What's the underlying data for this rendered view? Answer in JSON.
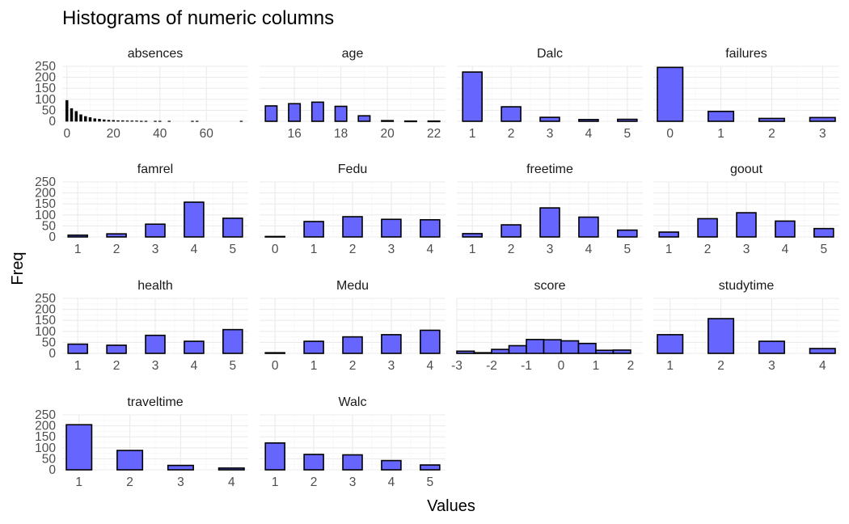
{
  "chart_title": "Histograms of numeric columns",
  "chart_data": {
    "type": "bar",
    "title": "Histograms of numeric columns",
    "xlabel": "Values",
    "ylabel": "Freq",
    "ylim": [
      0,
      250
    ],
    "y_ticks": [
      0,
      50,
      100,
      150,
      200,
      250
    ],
    "grid": true,
    "legend": "none",
    "bar_fill": "#6666ff",
    "bar_outline": "#000000",
    "panels": [
      {
        "name": "absences",
        "fill": "#000000",
        "xlim": [
          -2,
          78
        ],
        "x_ticks": [
          0,
          20,
          40,
          60
        ],
        "x_tick_labels": [
          "0",
          "20",
          "40",
          "60"
        ],
        "bins": [
          {
            "x": 0,
            "count": 95
          },
          {
            "x": 2,
            "count": 58
          },
          {
            "x": 4,
            "count": 45
          },
          {
            "x": 6,
            "count": 30
          },
          {
            "x": 8,
            "count": 22
          },
          {
            "x": 10,
            "count": 17
          },
          {
            "x": 12,
            "count": 12
          },
          {
            "x": 14,
            "count": 10
          },
          {
            "x": 16,
            "count": 7
          },
          {
            "x": 18,
            "count": 5
          },
          {
            "x": 20,
            "count": 4
          },
          {
            "x": 22,
            "count": 3
          },
          {
            "x": 24,
            "count": 3
          },
          {
            "x": 26,
            "count": 2
          },
          {
            "x": 28,
            "count": 2
          },
          {
            "x": 30,
            "count": 2
          },
          {
            "x": 32,
            "count": 1
          },
          {
            "x": 34,
            "count": 1
          },
          {
            "x": 38,
            "count": 1
          },
          {
            "x": 40,
            "count": 1
          },
          {
            "x": 44,
            "count": 1
          },
          {
            "x": 54,
            "count": 1
          },
          {
            "x": 56,
            "count": 1
          },
          {
            "x": 75,
            "count": 1
          }
        ],
        "width": 1.0
      },
      {
        "name": "age",
        "xlim": [
          14.5,
          22.5
        ],
        "x_ticks": [
          16,
          18,
          20,
          22
        ],
        "x_tick_labels": [
          "16",
          "18",
          "20",
          "22"
        ],
        "bins": [
          {
            "x": 15,
            "count": 70
          },
          {
            "x": 16,
            "count": 80
          },
          {
            "x": 17,
            "count": 87
          },
          {
            "x": 18,
            "count": 68
          },
          {
            "x": 19,
            "count": 25
          },
          {
            "x": 20,
            "count": 3
          },
          {
            "x": 21,
            "count": 1
          },
          {
            "x": 22,
            "count": 1
          }
        ],
        "width": 0.5
      },
      {
        "name": "Dalc",
        "xlim": [
          0.6,
          5.4
        ],
        "x_ticks": [
          1,
          2,
          3,
          4,
          5
        ],
        "x_tick_labels": [
          "1",
          "2",
          "3",
          "4",
          "5"
        ],
        "bins": [
          {
            "x": 1,
            "count": 224
          },
          {
            "x": 2,
            "count": 66
          },
          {
            "x": 3,
            "count": 18
          },
          {
            "x": 4,
            "count": 8
          },
          {
            "x": 5,
            "count": 9
          }
        ],
        "width": 0.5
      },
      {
        "name": "failures",
        "xlim": [
          -0.33,
          3.33
        ],
        "x_ticks": [
          0,
          1,
          2,
          3
        ],
        "x_tick_labels": [
          "0",
          "1",
          "2",
          "3"
        ],
        "bins": [
          {
            "x": 0,
            "count": 245
          },
          {
            "x": 1,
            "count": 45
          },
          {
            "x": 2,
            "count": 13
          },
          {
            "x": 3,
            "count": 17
          }
        ],
        "width": 0.5
      },
      {
        "name": "famrel",
        "xlim": [
          0.6,
          5.4
        ],
        "x_ticks": [
          1,
          2,
          3,
          4,
          5
        ],
        "x_tick_labels": [
          "1",
          "2",
          "3",
          "4",
          "5"
        ],
        "bins": [
          {
            "x": 1,
            "count": 8
          },
          {
            "x": 2,
            "count": 14
          },
          {
            "x": 3,
            "count": 58
          },
          {
            "x": 4,
            "count": 158
          },
          {
            "x": 5,
            "count": 85
          }
        ],
        "width": 0.5
      },
      {
        "name": "Fedu",
        "xlim": [
          -0.4,
          4.4
        ],
        "x_ticks": [
          0,
          1,
          2,
          3,
          4
        ],
        "x_tick_labels": [
          "0",
          "1",
          "2",
          "3",
          "4"
        ],
        "bins": [
          {
            "x": 0,
            "count": 2
          },
          {
            "x": 1,
            "count": 70
          },
          {
            "x": 2,
            "count": 92
          },
          {
            "x": 3,
            "count": 80
          },
          {
            "x": 4,
            "count": 78
          }
        ],
        "width": 0.5
      },
      {
        "name": "freetime",
        "xlim": [
          0.6,
          5.4
        ],
        "x_ticks": [
          1,
          2,
          3,
          4,
          5
        ],
        "x_tick_labels": [
          "1",
          "2",
          "3",
          "4",
          "5"
        ],
        "bins": [
          {
            "x": 1,
            "count": 15
          },
          {
            "x": 2,
            "count": 55
          },
          {
            "x": 3,
            "count": 132
          },
          {
            "x": 4,
            "count": 90
          },
          {
            "x": 5,
            "count": 31
          }
        ],
        "width": 0.5
      },
      {
        "name": "goout",
        "xlim": [
          0.6,
          5.4
        ],
        "x_ticks": [
          1,
          2,
          3,
          4,
          5
        ],
        "x_tick_labels": [
          "1",
          "2",
          "3",
          "4",
          "5"
        ],
        "bins": [
          {
            "x": 1,
            "count": 22
          },
          {
            "x": 2,
            "count": 83
          },
          {
            "x": 3,
            "count": 110
          },
          {
            "x": 4,
            "count": 72
          },
          {
            "x": 5,
            "count": 38
          }
        ],
        "width": 0.5
      },
      {
        "name": "health",
        "xlim": [
          0.6,
          5.4
        ],
        "x_ticks": [
          1,
          2,
          3,
          4,
          5
        ],
        "x_tick_labels": [
          "1",
          "2",
          "3",
          "4",
          "5"
        ],
        "bins": [
          {
            "x": 1,
            "count": 42
          },
          {
            "x": 2,
            "count": 37
          },
          {
            "x": 3,
            "count": 82
          },
          {
            "x": 4,
            "count": 55
          },
          {
            "x": 5,
            "count": 108
          }
        ],
        "width": 0.5
      },
      {
        "name": "Medu",
        "xlim": [
          -0.4,
          4.4
        ],
        "x_ticks": [
          0,
          1,
          2,
          3,
          4
        ],
        "x_tick_labels": [
          "0",
          "1",
          "2",
          "3",
          "4"
        ],
        "bins": [
          {
            "x": 0,
            "count": 3
          },
          {
            "x": 1,
            "count": 55
          },
          {
            "x": 2,
            "count": 75
          },
          {
            "x": 3,
            "count": 85
          },
          {
            "x": 4,
            "count": 105
          }
        ],
        "width": 0.5
      },
      {
        "name": "score",
        "xlim": [
          -3.0,
          2.35
        ],
        "x_ticks": [
          -3,
          -2,
          -1,
          0,
          1,
          2
        ],
        "x_tick_labels": [
          "-3",
          "-2",
          "-1",
          "0",
          "1",
          "2"
        ],
        "bins": [
          {
            "x": -2.75,
            "count": 10
          },
          {
            "x": -2.25,
            "count": 3
          },
          {
            "x": -1.75,
            "count": 18
          },
          {
            "x": -1.25,
            "count": 35
          },
          {
            "x": -0.75,
            "count": 63
          },
          {
            "x": -0.25,
            "count": 62
          },
          {
            "x": 0.25,
            "count": 57
          },
          {
            "x": 0.75,
            "count": 45
          },
          {
            "x": 1.25,
            "count": 14
          },
          {
            "x": 1.75,
            "count": 15
          }
        ],
        "width": 0.5
      },
      {
        "name": "studytime",
        "xlim": [
          0.67,
          4.33
        ],
        "x_ticks": [
          1,
          2,
          3,
          4
        ],
        "x_tick_labels": [
          "1",
          "2",
          "3",
          "4"
        ],
        "bins": [
          {
            "x": 1,
            "count": 85
          },
          {
            "x": 2,
            "count": 158
          },
          {
            "x": 3,
            "count": 55
          },
          {
            "x": 4,
            "count": 22
          }
        ],
        "width": 0.5
      },
      {
        "name": "traveltime",
        "xlim": [
          0.67,
          4.33
        ],
        "x_ticks": [
          1,
          2,
          3,
          4
        ],
        "x_tick_labels": [
          "1",
          "2",
          "3",
          "4"
        ],
        "bins": [
          {
            "x": 1,
            "count": 205
          },
          {
            "x": 2,
            "count": 88
          },
          {
            "x": 3,
            "count": 20
          },
          {
            "x": 4,
            "count": 8
          }
        ],
        "width": 0.5
      },
      {
        "name": "Walc",
        "xlim": [
          0.6,
          5.4
        ],
        "x_ticks": [
          1,
          2,
          3,
          4,
          5
        ],
        "x_tick_labels": [
          "1",
          "2",
          "3",
          "4",
          "5"
        ],
        "bins": [
          {
            "x": 1,
            "count": 122
          },
          {
            "x": 2,
            "count": 70
          },
          {
            "x": 3,
            "count": 68
          },
          {
            "x": 4,
            "count": 42
          },
          {
            "x": 5,
            "count": 22
          }
        ],
        "width": 0.5
      }
    ]
  }
}
